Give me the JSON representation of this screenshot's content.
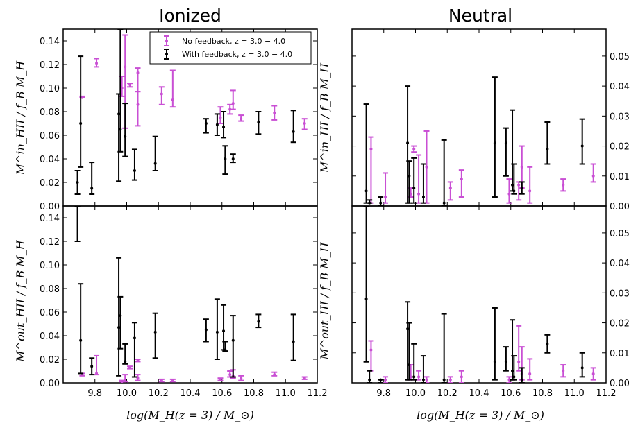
{
  "chart_data": {
    "type": "errorbar-grid",
    "panel_titles": [
      "Ionized",
      "Neutral"
    ],
    "xlabel": "log(M_H(z = 3) / M_⊙)",
    "xlim": [
      9.6,
      11.2
    ],
    "xticks": [
      "9.8",
      "10.0",
      "10.2",
      "10.4",
      "10.6",
      "10.8",
      "11.0",
      "11.2"
    ],
    "legend": {
      "placement": "top-right of Ionized top panel",
      "entries": [
        {
          "series": "No feedback",
          "label": "No feedback, z = 3.0 − 4.0"
        },
        {
          "series": "With feedback",
          "label": "With feedback, z = 3.0 − 4.0"
        }
      ]
    },
    "colors": {
      "No feedback": "#c94fd4",
      "With feedback": "#000000"
    },
    "panels": [
      {
        "id": "ionized-in",
        "column": 0,
        "row": 0,
        "ylabel": "M^in_HII / f_B M_H",
        "yaxis_side": "left",
        "ylim": [
          0,
          0.15
        ],
        "yticks": [
          "0.00",
          "0.02",
          "0.04",
          "0.06",
          "0.08",
          "0.10",
          "0.12",
          "0.14"
        ],
        "series": [
          {
            "name": "No feedback",
            "points": [
              [
                9.72,
                0.092,
                0.092,
                0.093
              ],
              [
                9.81,
                0.121,
                0.118,
                0.125
              ],
              [
                9.97,
                0.1,
                0.093,
                0.11
              ],
              [
                9.99,
                0.118,
                0.066,
                0.145
              ],
              [
                10.02,
                0.103,
                0.101,
                0.104
              ],
              [
                10.07,
                0.113,
                0.097,
                0.117
              ],
              [
                10.07,
                0.086,
                0.068,
                0.097
              ],
              [
                10.22,
                0.095,
                0.086,
                0.101
              ],
              [
                10.29,
                0.09,
                0.084,
                0.115
              ],
              [
                10.59,
                0.075,
                0.07,
                0.084
              ],
              [
                10.65,
                0.082,
                0.078,
                0.086
              ],
              [
                10.67,
                0.087,
                0.082,
                0.098
              ],
              [
                10.72,
                0.074,
                0.072,
                0.077
              ],
              [
                10.93,
                0.079,
                0.073,
                0.085
              ],
              [
                11.12,
                0.07,
                0.065,
                0.074
              ]
            ]
          },
          {
            "name": "With feedback",
            "points": [
              [
                9.69,
                0.02,
                0.01,
                0.03
              ],
              [
                9.71,
                0.07,
                0.033,
                0.127
              ],
              [
                9.78,
                0.015,
                0.01,
                0.037
              ],
              [
                9.95,
                0.078,
                0.021,
                0.095
              ],
              [
                9.96,
                0.065,
                0.046,
                0.15
              ],
              [
                9.99,
                0.059,
                0.042,
                0.087
              ],
              [
                10.05,
                0.03,
                0.022,
                0.048
              ],
              [
                10.18,
                0.036,
                0.03,
                0.059
              ],
              [
                10.5,
                0.07,
                0.062,
                0.074
              ],
              [
                10.57,
                0.069,
                0.06,
                0.078
              ],
              [
                10.61,
                0.067,
                0.058,
                0.08
              ],
              [
                10.62,
                0.04,
                0.027,
                0.051
              ],
              [
                10.67,
                0.04,
                0.037,
                0.044
              ],
              [
                10.83,
                0.071,
                0.061,
                0.08
              ],
              [
                11.05,
                0.063,
                0.054,
                0.081
              ]
            ]
          }
        ]
      },
      {
        "id": "neutral-in",
        "column": 1,
        "row": 0,
        "ylabel": "M^in_HI / f_B M_H",
        "yaxis_side": "right",
        "ylim": [
          0,
          0.059
        ],
        "yticks": [
          "0.00",
          "0.01",
          "0.02",
          "0.03",
          "0.04",
          "0.05"
        ],
        "series": [
          {
            "name": "No feedback",
            "points": [
              [
                9.72,
                0.019,
                0.001,
                0.023
              ],
              [
                9.81,
                0.003,
                0.001,
                0.011
              ],
              [
                9.97,
                0.004,
                0.003,
                0.006
              ],
              [
                9.99,
                0.019,
                0.018,
                0.02
              ],
              [
                10.02,
                0.004,
                0.001,
                0.017
              ],
              [
                10.07,
                0.013,
                0.001,
                0.025
              ],
              [
                10.22,
                0.006,
                0.002,
                0.008
              ],
              [
                10.29,
                0.009,
                0.003,
                0.012
              ],
              [
                10.59,
                0.004,
                0.001,
                0.009
              ],
              [
                10.65,
                0.007,
                0.002,
                0.008
              ],
              [
                10.67,
                0.013,
                0.006,
                0.02
              ],
              [
                10.72,
                0.005,
                0.001,
                0.013
              ],
              [
                10.93,
                0.007,
                0.005,
                0.009
              ],
              [
                11.12,
                0.01,
                0.008,
                0.014
              ]
            ]
          },
          {
            "name": "With feedback",
            "points": [
              [
                9.69,
                0.005,
                0.001,
                0.034
              ],
              [
                9.71,
                0.001,
                0.001,
                0.002
              ],
              [
                9.78,
                0.001,
                0.0,
                0.003
              ],
              [
                9.95,
                0.021,
                0.001,
                0.04
              ],
              [
                9.96,
                0.01,
                0.001,
                0.015
              ],
              [
                9.99,
                0.006,
                0.001,
                0.016
              ],
              [
                10.05,
                0.003,
                0.001,
                0.014
              ],
              [
                10.18,
                0.001,
                0.0,
                0.022
              ],
              [
                10.5,
                0.021,
                0.003,
                0.043
              ],
              [
                10.57,
                0.021,
                0.01,
                0.026
              ],
              [
                10.61,
                0.007,
                0.005,
                0.032
              ],
              [
                10.62,
                0.005,
                0.004,
                0.014
              ],
              [
                10.67,
                0.006,
                0.004,
                0.008
              ],
              [
                10.83,
                0.019,
                0.014,
                0.028
              ],
              [
                11.05,
                0.02,
                0.014,
                0.029
              ]
            ]
          }
        ]
      },
      {
        "id": "ionized-out",
        "column": 0,
        "row": 1,
        "ylabel": "M^out_HII / f_B M_H",
        "yaxis_side": "left",
        "ylim": [
          0,
          0.15
        ],
        "yticks": [
          "0.00",
          "0.02",
          "0.04",
          "0.06",
          "0.08",
          "0.10",
          "0.12",
          "0.14"
        ],
        "series": [
          {
            "name": "No feedback",
            "points": [
              [
                9.72,
                0.007,
                0.006,
                0.008
              ],
              [
                9.81,
                0.008,
                0.007,
                0.023
              ],
              [
                9.97,
                0.001,
                0.001,
                0.002
              ],
              [
                9.99,
                0.002,
                0.001,
                0.007
              ],
              [
                10.02,
                0.013,
                0.012,
                0.014
              ],
              [
                10.07,
                0.004,
                0.002,
                0.007
              ],
              [
                10.07,
                0.019,
                0.018,
                0.02
              ],
              [
                10.22,
                0.002,
                0.001,
                0.003
              ],
              [
                10.29,
                0.002,
                0.001,
                0.003
              ],
              [
                10.59,
                0.003,
                0.002,
                0.004
              ],
              [
                10.65,
                0.007,
                0.005,
                0.01
              ],
              [
                10.67,
                0.006,
                0.004,
                0.011
              ],
              [
                10.72,
                0.004,
                0.002,
                0.006
              ],
              [
                10.93,
                0.007,
                0.006,
                0.009
              ],
              [
                11.12,
                0.004,
                0.003,
                0.005
              ]
            ]
          },
          {
            "name": "With feedback",
            "points": [
              [
                9.69,
                0.15,
                0.12,
                0.15
              ],
              [
                9.71,
                0.036,
                0.008,
                0.084
              ],
              [
                9.78,
                0.014,
                0.007,
                0.021
              ],
              [
                9.95,
                0.047,
                0.006,
                0.106
              ],
              [
                9.96,
                0.057,
                0.029,
                0.073
              ],
              [
                9.99,
                0.018,
                0.016,
                0.033
              ],
              [
                10.05,
                0.038,
                0.005,
                0.051
              ],
              [
                10.18,
                0.043,
                0.021,
                0.059
              ],
              [
                10.5,
                0.045,
                0.035,
                0.054
              ],
              [
                10.57,
                0.043,
                0.02,
                0.071
              ],
              [
                10.61,
                0.044,
                0.028,
                0.066
              ],
              [
                10.62,
                0.028,
                0.027,
                0.035
              ],
              [
                10.67,
                0.036,
                0.005,
                0.057
              ],
              [
                10.83,
                0.052,
                0.047,
                0.058
              ],
              [
                11.05,
                0.035,
                0.019,
                0.058
              ]
            ]
          }
        ]
      },
      {
        "id": "neutral-out",
        "column": 1,
        "row": 1,
        "ylabel": "M^out_HI / f_B M_H",
        "yaxis_side": "right",
        "ylim": [
          0,
          0.059
        ],
        "yticks": [
          "0.00",
          "0.01",
          "0.02",
          "0.03",
          "0.04",
          "0.05"
        ],
        "series": [
          {
            "name": "No feedback",
            "points": [
              [
                9.72,
                0.011,
                0.004,
                0.014
              ],
              [
                9.81,
                0.001,
                0.0,
                0.002
              ],
              [
                9.97,
                0.002,
                0.001,
                0.006
              ],
              [
                10.02,
                0.002,
                0.001,
                0.004
              ],
              [
                10.07,
                0.001,
                0.0,
                0.002
              ],
              [
                10.22,
                0.001,
                0.0,
                0.002
              ],
              [
                10.29,
                0.002,
                0.0,
                0.004
              ],
              [
                10.59,
                0.001,
                0.0,
                0.002
              ],
              [
                10.65,
                0.007,
                0.004,
                0.019
              ],
              [
                10.67,
                0.003,
                0.001,
                0.012
              ],
              [
                10.72,
                0.003,
                0.001,
                0.008
              ],
              [
                10.93,
                0.004,
                0.002,
                0.006
              ],
              [
                11.12,
                0.003,
                0.001,
                0.005
              ]
            ]
          },
          {
            "name": "With feedback",
            "points": [
              [
                9.69,
                0.028,
                0.007,
                0.059
              ],
              [
                9.71,
                0.001,
                0.0,
                0.004
              ],
              [
                9.78,
                0.001,
                0.0,
                0.001
              ],
              [
                9.95,
                0.018,
                0.001,
                0.027
              ],
              [
                9.96,
                0.006,
                0.001,
                0.02
              ],
              [
                9.99,
                0.002,
                0.001,
                0.013
              ],
              [
                10.05,
                0.001,
                0.0,
                0.009
              ],
              [
                10.18,
                0.001,
                0.0,
                0.023
              ],
              [
                10.5,
                0.007,
                0.001,
                0.025
              ],
              [
                10.57,
                0.007,
                0.004,
                0.012
              ],
              [
                10.61,
                0.004,
                0.001,
                0.021
              ],
              [
                10.62,
                0.002,
                0.001,
                0.009
              ],
              [
                10.67,
                0.001,
                0.0,
                0.005
              ],
              [
                10.83,
                0.013,
                0.01,
                0.016
              ],
              [
                11.05,
                0.005,
                0.002,
                0.01
              ]
            ]
          }
        ]
      }
    ]
  }
}
